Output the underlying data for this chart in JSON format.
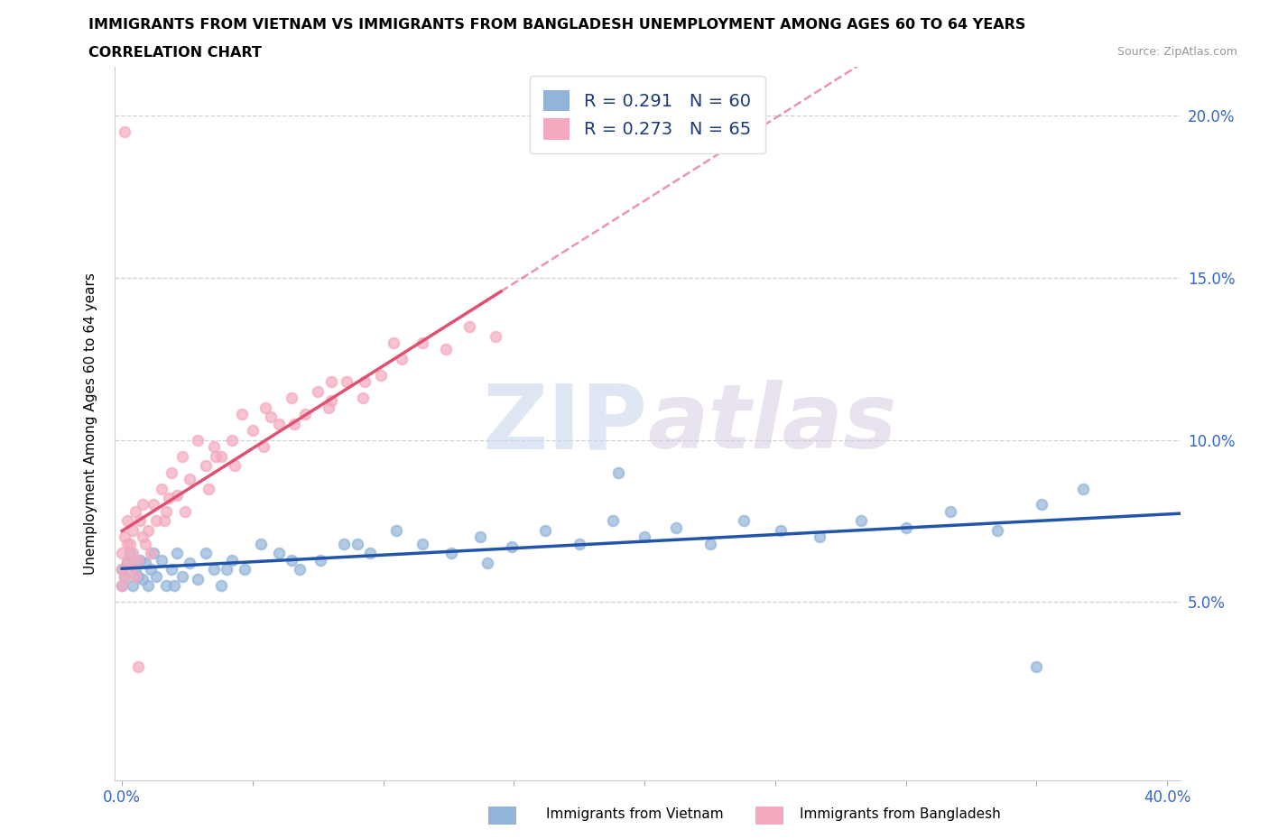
{
  "title_line1": "IMMIGRANTS FROM VIETNAM VS IMMIGRANTS FROM BANGLADESH UNEMPLOYMENT AMONG AGES 60 TO 64 YEARS",
  "title_line2": "CORRELATION CHART",
  "source": "Source: ZipAtlas.com",
  "xlabel_viet": "Immigrants from Vietnam",
  "xlabel_bang": "Immigrants from Bangladesh",
  "ylabel": "Unemployment Among Ages 60 to 64 years",
  "xlim": [
    -0.003,
    0.405
  ],
  "ylim": [
    -0.005,
    0.215
  ],
  "vietnam_color": "#92b4d9",
  "bangladesh_color": "#f4aabe",
  "vietnam_line_color": "#2255aa",
  "bangladesh_line_color": "#e05070",
  "vietnam_R": 0.291,
  "vietnam_N": 60,
  "bangladesh_R": 0.273,
  "bangladesh_N": 65,
  "watermark_text": "ZIPatlas",
  "ytick_vals": [
    0.05,
    0.1,
    0.15,
    0.2
  ],
  "ytick_labels": [
    "5.0%",
    "10.0%",
    "15.0%",
    "20.0%"
  ],
  "xtick_vals": [
    0.0,
    0.05,
    0.1,
    0.15,
    0.2,
    0.25,
    0.3,
    0.35,
    0.4
  ],
  "xtick_label_left": "0.0%",
  "xtick_label_right": "40.0%",
  "vietnam_x": [
    0.0,
    0.0,
    0.001,
    0.002,
    0.003,
    0.004,
    0.005,
    0.006,
    0.007,
    0.008,
    0.009,
    0.01,
    0.011,
    0.012,
    0.013,
    0.015,
    0.017,
    0.019,
    0.021,
    0.023,
    0.026,
    0.029,
    0.032,
    0.035,
    0.038,
    0.042,
    0.047,
    0.053,
    0.06,
    0.068,
    0.076,
    0.085,
    0.095,
    0.105,
    0.115,
    0.126,
    0.137,
    0.149,
    0.162,
    0.175,
    0.188,
    0.2,
    0.212,
    0.225,
    0.238,
    0.252,
    0.267,
    0.283,
    0.3,
    0.317,
    0.335,
    0.352,
    0.368,
    0.02,
    0.04,
    0.065,
    0.09,
    0.14,
    0.19,
    0.35
  ],
  "vietnam_y": [
    0.055,
    0.06,
    0.058,
    0.062,
    0.065,
    0.055,
    0.06,
    0.058,
    0.063,
    0.057,
    0.062,
    0.055,
    0.06,
    0.065,
    0.058,
    0.063,
    0.055,
    0.06,
    0.065,
    0.058,
    0.062,
    0.057,
    0.065,
    0.06,
    0.055,
    0.063,
    0.06,
    0.068,
    0.065,
    0.06,
    0.063,
    0.068,
    0.065,
    0.072,
    0.068,
    0.065,
    0.07,
    0.067,
    0.072,
    0.068,
    0.075,
    0.07,
    0.073,
    0.068,
    0.075,
    0.072,
    0.07,
    0.075,
    0.073,
    0.078,
    0.072,
    0.08,
    0.085,
    0.055,
    0.06,
    0.063,
    0.068,
    0.062,
    0.09,
    0.03
  ],
  "bangladesh_x": [
    0.0,
    0.0,
    0.0,
    0.001,
    0.001,
    0.002,
    0.002,
    0.003,
    0.003,
    0.004,
    0.004,
    0.005,
    0.005,
    0.006,
    0.007,
    0.008,
    0.009,
    0.01,
    0.011,
    0.012,
    0.013,
    0.015,
    0.017,
    0.019,
    0.021,
    0.023,
    0.026,
    0.029,
    0.032,
    0.035,
    0.038,
    0.042,
    0.046,
    0.05,
    0.055,
    0.06,
    0.065,
    0.07,
    0.075,
    0.08,
    0.086,
    0.092,
    0.099,
    0.107,
    0.115,
    0.124,
    0.133,
    0.143,
    0.008,
    0.016,
    0.024,
    0.033,
    0.043,
    0.054,
    0.066,
    0.079,
    0.093,
    0.002,
    0.018,
    0.036,
    0.057,
    0.08,
    0.104,
    0.001,
    0.006
  ],
  "bangladesh_y": [
    0.055,
    0.06,
    0.065,
    0.058,
    0.07,
    0.063,
    0.075,
    0.068,
    0.06,
    0.072,
    0.065,
    0.078,
    0.058,
    0.063,
    0.075,
    0.08,
    0.068,
    0.072,
    0.065,
    0.08,
    0.075,
    0.085,
    0.078,
    0.09,
    0.083,
    0.095,
    0.088,
    0.1,
    0.092,
    0.098,
    0.095,
    0.1,
    0.108,
    0.103,
    0.11,
    0.105,
    0.113,
    0.108,
    0.115,
    0.112,
    0.118,
    0.113,
    0.12,
    0.125,
    0.13,
    0.128,
    0.135,
    0.132,
    0.07,
    0.075,
    0.078,
    0.085,
    0.092,
    0.098,
    0.105,
    0.11,
    0.118,
    0.068,
    0.082,
    0.095,
    0.107,
    0.118,
    0.13,
    0.195,
    0.03
  ],
  "bangladesh_line_x_start": 0.0,
  "bangladesh_line_x_end": 0.145,
  "vietnam_line_x_start": 0.0,
  "vietnam_line_x_end": 0.405
}
